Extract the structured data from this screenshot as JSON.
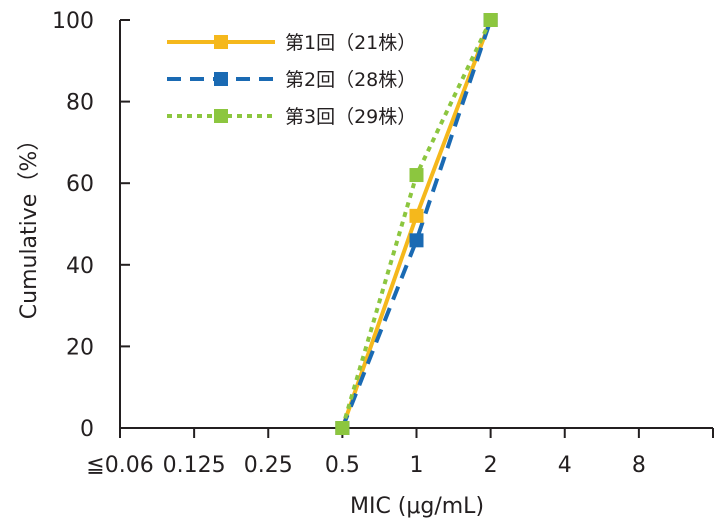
{
  "chart_data": {
    "type": "line",
    "xlabel": "MIC (μg/mL)",
    "ylabel": "Cumulative（%）",
    "categories": [
      "≦0.06",
      "0.125",
      "0.25",
      "0.5",
      "1",
      "2",
      "4",
      "8"
    ],
    "ylim": [
      0,
      100
    ],
    "yticks": [
      "0",
      "20",
      "40",
      "60",
      "80",
      "100"
    ],
    "grid": false,
    "legend_position": "top-left",
    "series": [
      {
        "name": "第1回（21株）",
        "color": "#f5b81c",
        "dash": "solid",
        "marker": "square",
        "points": [
          {
            "x": "0.5",
            "y": 0
          },
          {
            "x": "1",
            "y": 52
          },
          {
            "x": "2",
            "y": 100
          }
        ]
      },
      {
        "name": "第2回（28株）",
        "color": "#1a6ab3",
        "dash": "dashed",
        "marker": "square",
        "points": [
          {
            "x": "0.5",
            "y": 0
          },
          {
            "x": "1",
            "y": 46
          },
          {
            "x": "2",
            "y": 100
          }
        ]
      },
      {
        "name": "第3回（29株）",
        "color": "#8cc63f",
        "dash": "dotted",
        "marker": "square",
        "points": [
          {
            "x": "0.5",
            "y": 0
          },
          {
            "x": "1",
            "y": 62
          },
          {
            "x": "2",
            "y": 100
          }
        ]
      }
    ]
  }
}
